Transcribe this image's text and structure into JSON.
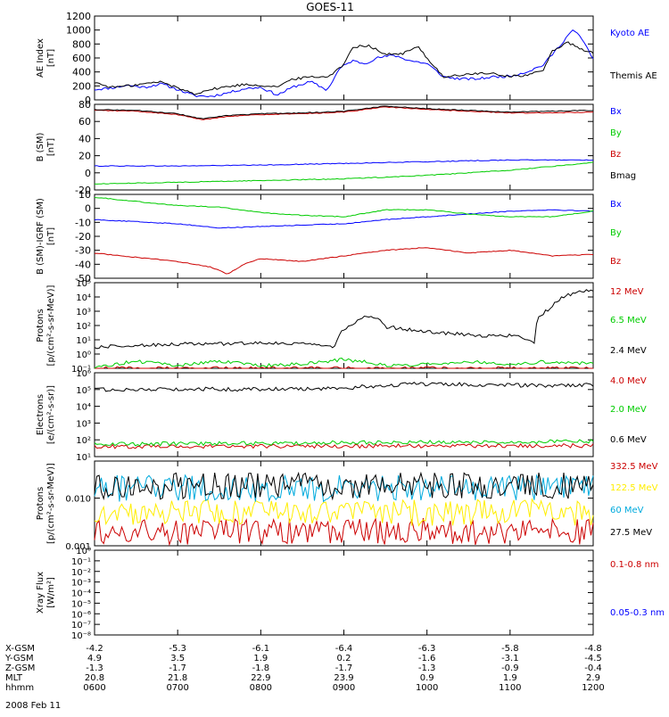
{
  "title": "GOES-11",
  "date_label": "2008 Feb 11",
  "orbit_table": {
    "row_labels": [
      "X-GSM",
      "Y-GSM",
      "Z-GSM",
      "MLT",
      "hhmm"
    ],
    "columns": [
      [
        "-4.2",
        "4.9",
        "-1.3",
        "20.8",
        "0600"
      ],
      [
        "-5.3",
        "3.5",
        "-1.7",
        "21.8",
        "0700"
      ],
      [
        "-6.1",
        "1.9",
        "-1.8",
        "22.9",
        "0800"
      ],
      [
        "-6.4",
        "0.2",
        "-1.7",
        "23.9",
        "0900"
      ],
      [
        "-6.3",
        "-1.6",
        "-1.3",
        "0.9",
        "1000"
      ],
      [
        "-5.8",
        "-3.1",
        "-0.9",
        "1.9",
        "1100"
      ],
      [
        "-4.8",
        "-4.5",
        "-0.4",
        "2.9",
        "1200"
      ]
    ]
  },
  "chart_data": [
    {
      "type": "line",
      "panel": "ae-index",
      "ylabel": [
        "AE Index",
        "[nT]"
      ],
      "ylim": [
        0,
        1200
      ],
      "yscale": "linear",
      "yticks": [
        0,
        200,
        400,
        600,
        800,
        1000,
        1200
      ],
      "x_unit": "UT hour",
      "xlim": [
        6,
        12
      ],
      "series": [
        {
          "name": "Kyoto AE",
          "color": "#0000ff",
          "x": [
            6.0,
            6.2,
            6.4,
            6.6,
            6.8,
            7.0,
            7.2,
            7.4,
            7.6,
            7.8,
            8.0,
            8.2,
            8.4,
            8.6,
            8.8,
            8.95,
            9.1,
            9.25,
            9.4,
            9.6,
            9.8,
            10.0,
            10.2,
            10.4,
            10.6,
            10.8,
            11.0,
            11.2,
            11.4,
            11.6,
            11.75,
            11.85,
            12.0
          ],
          "y": [
            150,
            170,
            210,
            180,
            230,
            150,
            60,
            50,
            100,
            160,
            180,
            70,
            190,
            260,
            140,
            450,
            560,
            520,
            600,
            640,
            560,
            520,
            330,
            300,
            300,
            330,
            340,
            400,
            500,
            780,
            1000,
            900,
            590
          ]
        },
        {
          "name": "Themis AE",
          "color": "#000000",
          "x": [
            6.0,
            6.2,
            6.4,
            6.6,
            6.8,
            7.0,
            7.2,
            7.4,
            7.6,
            7.8,
            8.0,
            8.2,
            8.4,
            8.6,
            8.8,
            9.0,
            9.1,
            9.3,
            9.5,
            9.7,
            9.9,
            10.0,
            10.2,
            10.4,
            10.6,
            10.8,
            11.0,
            11.2,
            11.4,
            11.5,
            11.7,
            11.85,
            12.0
          ],
          "y": [
            250,
            180,
            200,
            230,
            260,
            170,
            90,
            150,
            190,
            220,
            210,
            190,
            300,
            330,
            330,
            500,
            760,
            780,
            650,
            660,
            760,
            600,
            330,
            350,
            380,
            370,
            340,
            350,
            420,
            700,
            820,
            720,
            680
          ]
        }
      ]
    },
    {
      "type": "line",
      "panel": "b-sm",
      "ylabel": [
        "B (SM)",
        "[nT]"
      ],
      "ylim": [
        -20,
        80
      ],
      "yscale": "linear",
      "yticks": [
        -20,
        0,
        20,
        40,
        60,
        80
      ],
      "x_unit": "UT hour",
      "xlim": [
        6,
        12
      ],
      "series": [
        {
          "name": "Bx",
          "color": "#0000ff",
          "x": [
            6,
            7,
            8,
            9,
            10,
            11,
            12
          ],
          "y": [
            8,
            8,
            9,
            11,
            13,
            15,
            15
          ]
        },
        {
          "name": "By",
          "color": "#00cc00",
          "x": [
            6,
            7,
            8,
            9,
            10,
            11,
            12
          ],
          "y": [
            -13,
            -11,
            -9,
            -7,
            -3,
            3,
            12
          ]
        },
        {
          "name": "Bz",
          "color": "#cc0000",
          "x": [
            6,
            6.5,
            7,
            7.3,
            7.6,
            8,
            8.5,
            9,
            9.5,
            10,
            10.5,
            11,
            11.5,
            12
          ],
          "y": [
            73,
            72,
            68,
            62,
            66,
            68,
            69,
            71,
            77,
            74,
            72,
            70,
            70,
            71
          ]
        },
        {
          "name": "Bmag",
          "color": "#000000",
          "x": [
            6,
            6.5,
            7,
            7.3,
            7.6,
            8,
            8.5,
            9,
            9.5,
            10,
            10.5,
            11,
            11.5,
            12
          ],
          "y": [
            74,
            73,
            69,
            63,
            67,
            69,
            70,
            72,
            78,
            75,
            73,
            71,
            72,
            73
          ]
        }
      ]
    },
    {
      "type": "line",
      "panel": "b-sm-igrf",
      "ylabel": [
        "B (SM)-IGRF (SM)",
        "[nT]"
      ],
      "ylim": [
        -50,
        10
      ],
      "yscale": "linear",
      "yticks": [
        -50,
        -40,
        -30,
        -20,
        -10,
        0,
        10
      ],
      "x_unit": "UT hour",
      "xlim": [
        6,
        12
      ],
      "series": [
        {
          "name": "Bx",
          "color": "#0000ff",
          "x": [
            6,
            7,
            7.5,
            8,
            8.5,
            9,
            9.5,
            10,
            10.5,
            11,
            11.5,
            12
          ],
          "y": [
            -8,
            -11,
            -14,
            -13,
            -12,
            -11,
            -8,
            -6,
            -4,
            -2,
            -1,
            -2
          ]
        },
        {
          "name": "By",
          "color": "#00cc00",
          "x": [
            6,
            6.5,
            7,
            7.5,
            8,
            8.5,
            9,
            9.5,
            10,
            10.5,
            11,
            11.5,
            12
          ],
          "y": [
            8,
            5,
            2,
            1,
            -3,
            -5,
            -6,
            -1,
            -1,
            -4,
            -6,
            -6,
            -2
          ]
        },
        {
          "name": "Bz",
          "color": "#cc0000",
          "x": [
            6,
            6.5,
            7,
            7.2,
            7.4,
            7.6,
            7.8,
            8,
            8.5,
            9,
            9.5,
            10,
            10.5,
            11,
            11.5,
            12
          ],
          "y": [
            -32,
            -35,
            -38,
            -40,
            -42,
            -47,
            -40,
            -36,
            -38,
            -34,
            -30,
            -28,
            -32,
            -30,
            -34,
            -33
          ]
        }
      ]
    },
    {
      "type": "line",
      "panel": "protons-low",
      "ylabel": [
        "Protons",
        "[p/(cm²-s-sr-MeV)]"
      ],
      "ylim": [
        0.1,
        100000
      ],
      "yscale": "log",
      "yticks": [
        "10⁻¹",
        "10⁰",
        "10¹",
        "10²",
        "10³",
        "10⁴",
        "10⁵"
      ],
      "x_unit": "UT hour",
      "xlim": [
        6,
        12
      ],
      "series": [
        {
          "name": "12 MeV",
          "color": "#cc0000",
          "x": [
            6,
            12
          ],
          "y": [
            0.1,
            0.1
          ]
        },
        {
          "name": "6.5 MeV",
          "color": "#00cc00",
          "x": [
            6,
            6.5,
            7,
            7.5,
            8,
            8.5,
            9,
            9.5,
            10,
            10.5,
            11,
            11.5,
            12
          ],
          "y": [
            0.1,
            0.3,
            0.15,
            0.3,
            0.15,
            0.2,
            0.4,
            0.15,
            0.2,
            0.3,
            0.2,
            0.3,
            0.2
          ]
        },
        {
          "name": "2.4 MeV",
          "color": "#000000",
          "x": [
            6,
            6.5,
            7,
            7.5,
            8,
            8.5,
            8.9,
            9.1,
            9.3,
            9.5,
            9.8,
            10.2,
            10.6,
            11,
            11.3,
            11.5,
            11.8,
            12
          ],
          "y": [
            3,
            4,
            5,
            5,
            6,
            5,
            3,
            100,
            500,
            80,
            50,
            30,
            20,
            20,
            6,
            1500,
            20000,
            30000
          ]
        }
      ]
    },
    {
      "type": "line",
      "panel": "electrons",
      "ylabel": [
        "Electrons",
        "[e/(cm²-s-sr)]"
      ],
      "ylim": [
        10,
        1000000
      ],
      "yscale": "log",
      "yticks": [
        "10¹",
        "10²",
        "10³",
        "10⁴",
        "10⁵",
        "10⁶"
      ],
      "x_unit": "UT hour",
      "xlim": [
        6,
        12
      ],
      "series": [
        {
          "name": "4.0 MeV",
          "color": "#cc0000",
          "x": [
            6,
            12
          ],
          "y": [
            40,
            45
          ]
        },
        {
          "name": "2.0 MeV",
          "color": "#00cc00",
          "x": [
            6,
            12
          ],
          "y": [
            55,
            80
          ]
        },
        {
          "name": "0.6 MeV",
          "color": "#000000",
          "x": [
            6,
            7,
            8,
            9,
            9.5,
            10,
            10.5,
            11,
            11.5,
            12
          ],
          "y": [
            100000,
            110000,
            100000,
            120000,
            180000,
            220000,
            200000,
            180000,
            170000,
            190000
          ]
        }
      ]
    },
    {
      "type": "line",
      "panel": "protons-high",
      "ylabel": [
        "Protons",
        "[p/(cm²-s-sr-MeV)]"
      ],
      "ylim": [
        0.001,
        0.06
      ],
      "yscale": "log",
      "yticks": [
        "0.001",
        "0.010"
      ],
      "x_unit": "UT hour",
      "xlim": [
        6,
        12
      ],
      "series": [
        {
          "name": "332.5 MeV",
          "color": "#cc0000",
          "x": [
            6,
            12
          ],
          "y": [
            0.002,
            0.002
          ]
        },
        {
          "name": "122.5 MeV",
          "color": "#ffee00",
          "x": [
            6,
            12
          ],
          "y": [
            0.005,
            0.005
          ]
        },
        {
          "name": "60 MeV",
          "color": "#00aadd",
          "x": [
            6,
            12
          ],
          "y": [
            0.016,
            0.016
          ]
        },
        {
          "name": "27.5 MeV",
          "color": "#000000",
          "x": [
            6,
            12
          ],
          "y": [
            0.018,
            0.018
          ]
        }
      ]
    },
    {
      "type": "line",
      "panel": "xray",
      "ylabel": [
        "Xray Flux",
        "[W/m²]"
      ],
      "ylim": [
        1e-08,
        1
      ],
      "yscale": "log",
      "yticks": [
        "10⁻⁸",
        "10⁻⁷",
        "10⁻⁶",
        "10⁻⁵",
        "10⁻⁴",
        "10⁻³",
        "10⁻²",
        "10⁻¹",
        "10⁰"
      ],
      "x_unit": "UT hour",
      "xlim": [
        6,
        12
      ],
      "series": [
        {
          "name": "0.1-0.8 nm",
          "color": "#cc0000",
          "x": [],
          "y": []
        },
        {
          "name": "0.05-0.3 nm",
          "color": "#0000ff",
          "x": [],
          "y": []
        }
      ]
    }
  ]
}
